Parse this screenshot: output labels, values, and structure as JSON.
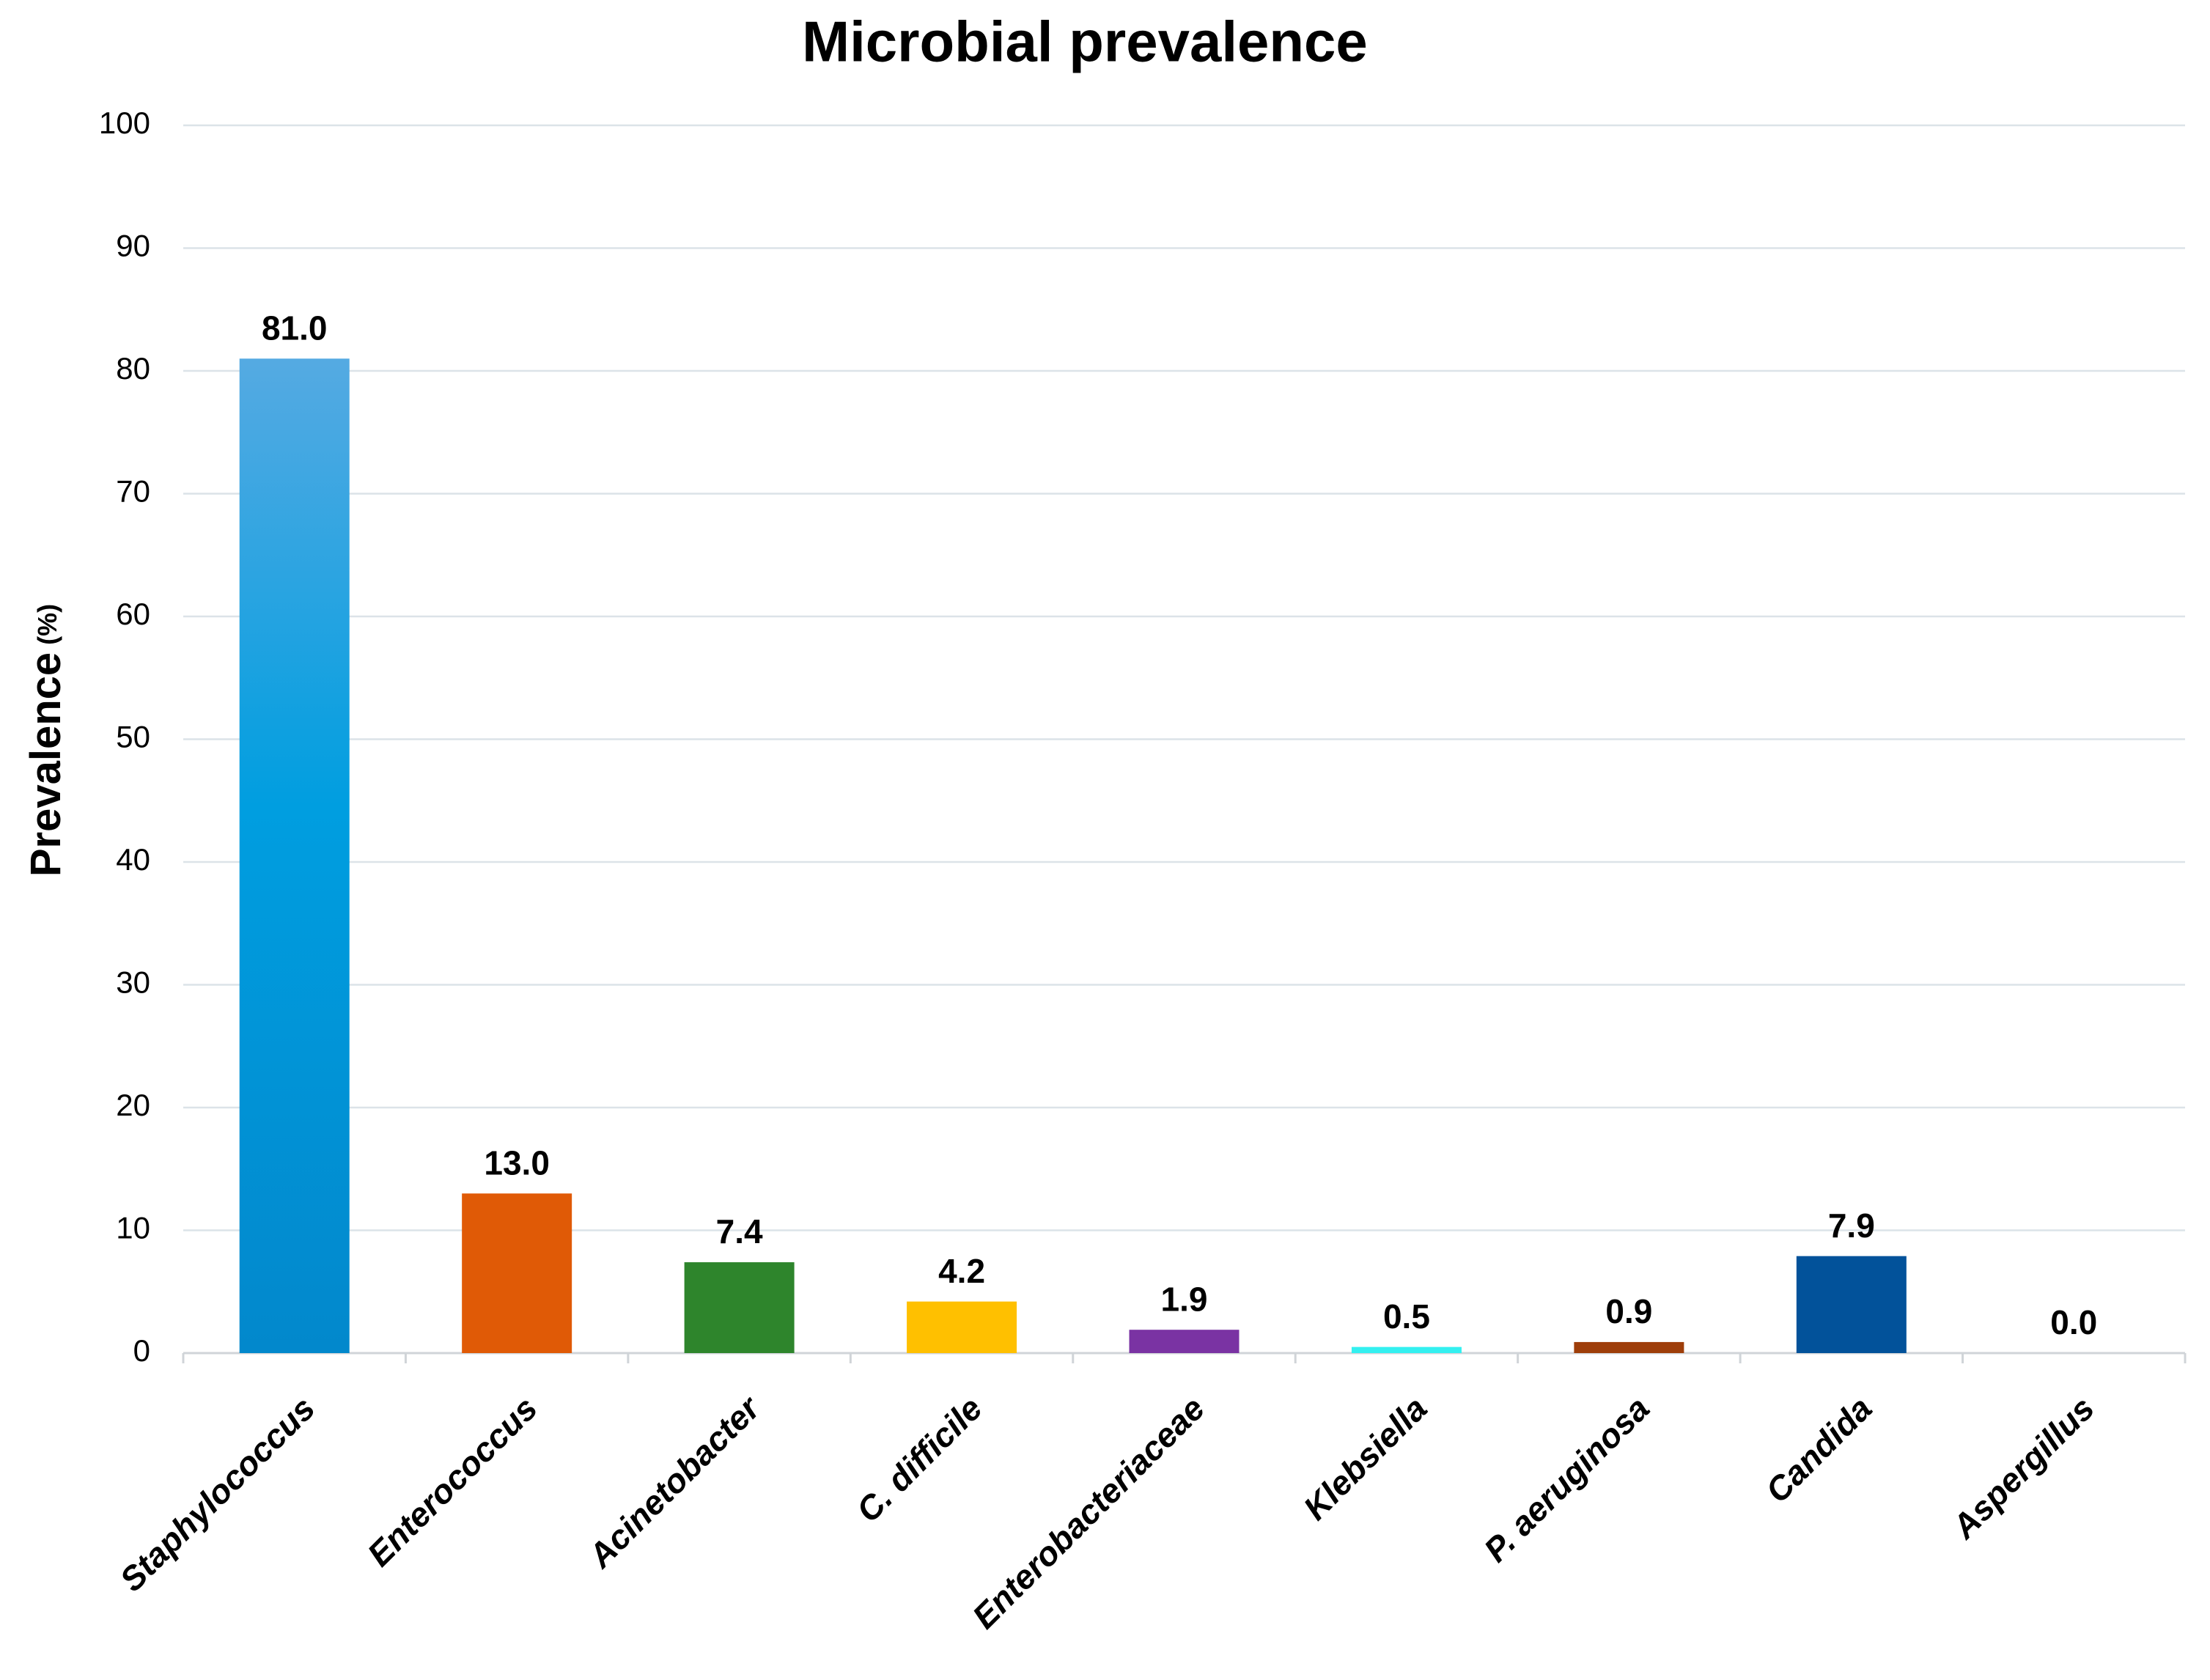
{
  "chart_data": {
    "type": "bar",
    "title": "Microbial prevalence",
    "ylabel": "Prevalence",
    "ylabel_unit": "(%)",
    "categories": [
      "Staphylococcus",
      "Enterococcus",
      "Acinetobacter",
      "C. difficile",
      "Enterobacteriaceae",
      "Klebsiella",
      "P. aeruginosa",
      "Candida",
      "Aspergillus"
    ],
    "values": [
      81.0,
      13.0,
      7.4,
      4.2,
      1.9,
      0.5,
      0.9,
      7.9,
      0.0
    ],
    "value_labels": [
      "81.0",
      "13.0",
      "7.4",
      "4.2",
      "1.9",
      "0.5",
      "0.9",
      "7.9",
      "0.0"
    ],
    "colors": [
      "#1a9ad6",
      "#e05a06",
      "#2e852c",
      "#ffc000",
      "#7a33a3",
      "#33f0f0",
      "#9e3e0a",
      "#02529a",
      "#7f7f7f"
    ],
    "ylim": [
      0,
      100
    ],
    "yticks": [
      0,
      10,
      20,
      30,
      40,
      50,
      60,
      70,
      80,
      90,
      100
    ],
    "grid": true
  }
}
